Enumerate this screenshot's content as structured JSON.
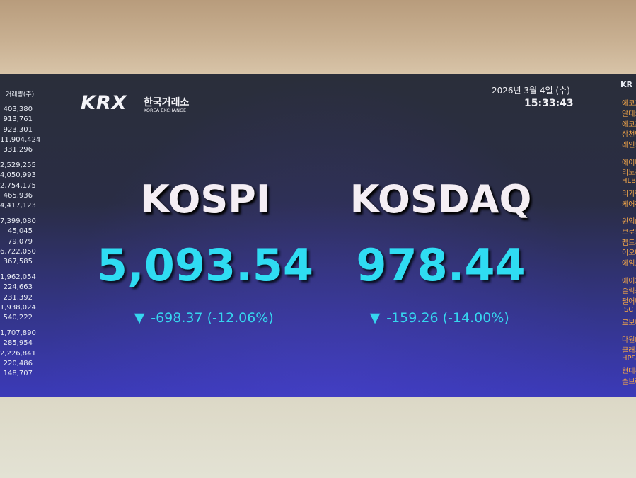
{
  "left_panel": {
    "header": "거래량(주)",
    "volumes": [
      "403,380",
      "913,761",
      "923,301",
      "11,904,424",
      "331,296",
      "2,529,255",
      "4,050,993",
      "2,754,175",
      "465,936",
      "4,417,123",
      "7,399,080",
      "45,045",
      "79,079",
      "6,722,050",
      "367,585",
      "1,962,054",
      "224,663",
      "231,392",
      "1,938,024",
      "540,222",
      "1,707,890",
      "285,954",
      "2,226,841",
      "220,486",
      "148,707"
    ]
  },
  "right_panel": {
    "header": "KR",
    "names": [
      "에코프",
      "알테오",
      "에코프",
      "삼천당",
      "레인보",
      "에이비",
      "리노공",
      "HLB",
      "리가켐",
      "케어젠",
      "원익I",
      "보로노",
      "펩트론",
      "이오테",
      "에임드",
      "에이치",
      "솔릭스",
      "펄어비",
      "ISC",
      "로보티",
      "다원D",
      "클래시",
      "HPS",
      "현대무",
      "솔브레"
    ]
  },
  "logo": {
    "mark": "KRX",
    "korean": "한국거래소",
    "english": "KOREA EXCHANGE"
  },
  "clock": {
    "date": "2026년 3월 4일 (수)",
    "time": "15:33:43"
  },
  "indices": [
    {
      "name": "KOSPI",
      "value": "5,093.54",
      "arrow": "▼",
      "change": "-698.37 (-12.06%)"
    },
    {
      "name": "KOSDAQ",
      "value": "978.44",
      "arrow": "▼",
      "change": "-159.26 (-14.00%)"
    }
  ]
}
